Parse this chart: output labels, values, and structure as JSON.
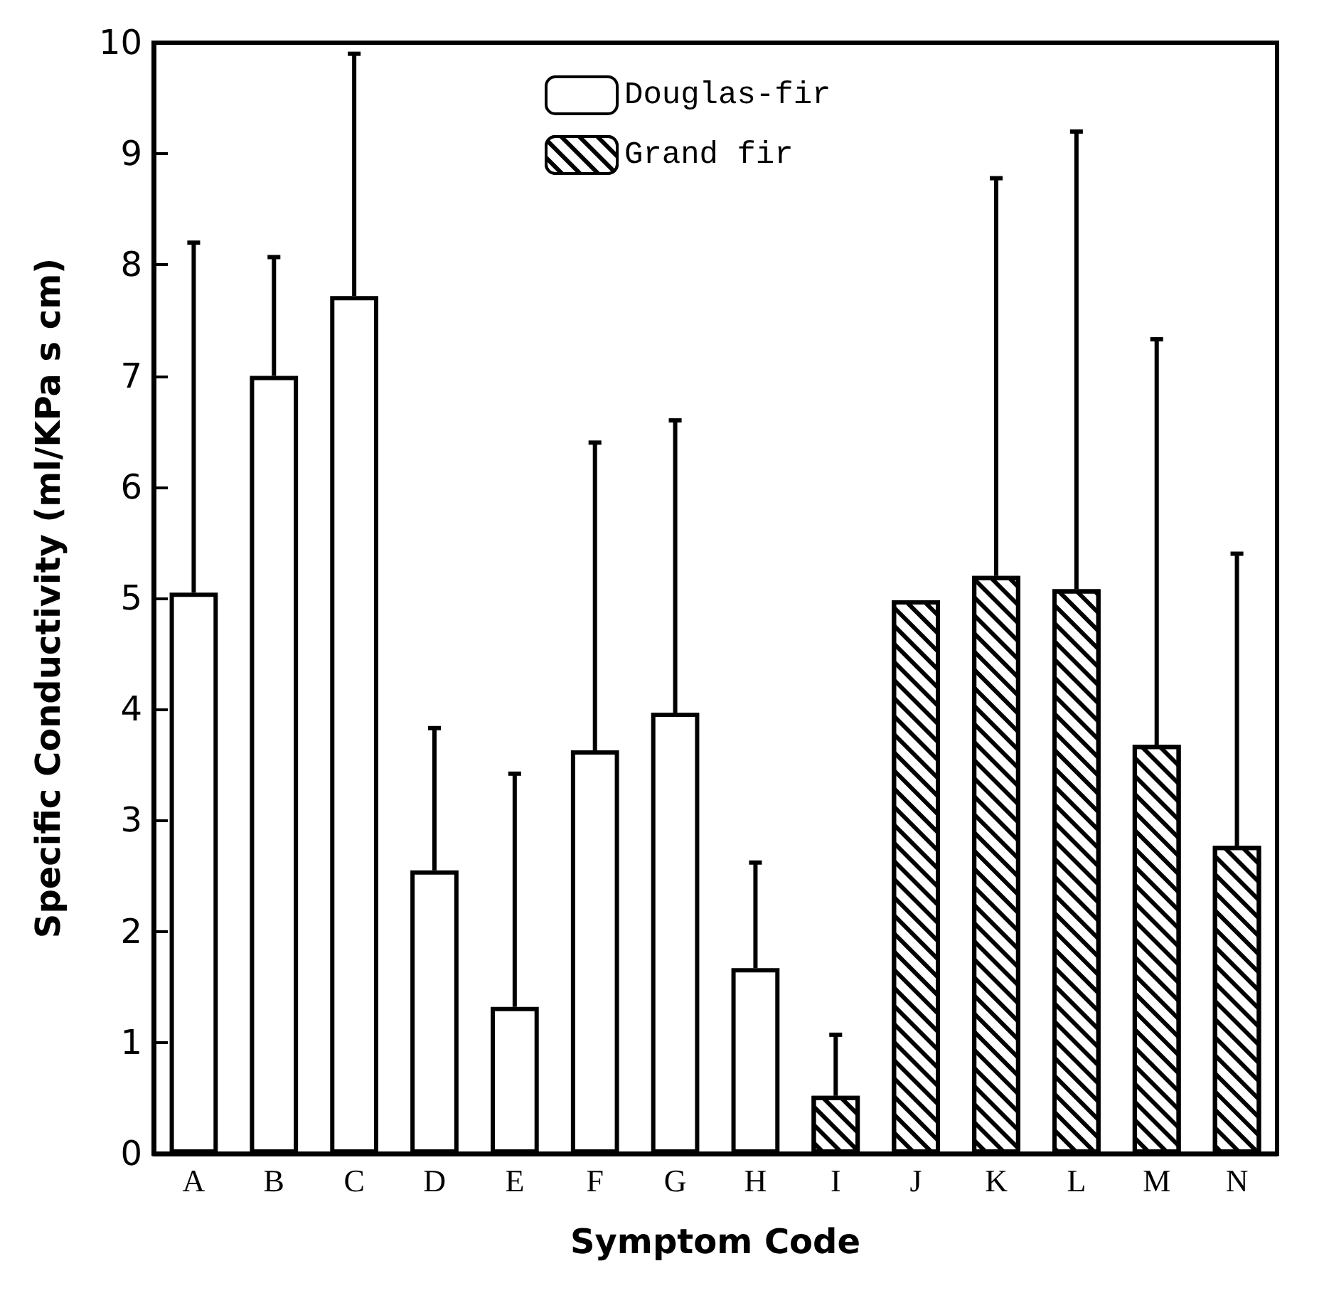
{
  "chart_data": {
    "type": "bar",
    "xlabel": "Symptom Code",
    "ylabel": "Specific Conductivity (ml/KPa s cm)",
    "categories": [
      "A",
      "B",
      "C",
      "D",
      "E",
      "F",
      "G",
      "H",
      "I",
      "J",
      "K",
      "L",
      "M",
      "N"
    ],
    "series": [
      {
        "name": "Douglas-fir",
        "color": "#ffffff",
        "values": [
          5.05,
          7.0,
          7.72,
          2.55,
          1.32,
          3.63,
          3.97,
          1.67,
          null,
          null,
          null,
          null,
          null,
          null
        ],
        "errors": [
          [
            5.05,
            8.2
          ],
          [
            7.0,
            8.07
          ],
          [
            7.72,
            9.9
          ],
          [
            2.55,
            3.83
          ],
          [
            1.32,
            3.42
          ],
          [
            3.63,
            6.4
          ],
          [
            3.97,
            6.6
          ],
          [
            1.67,
            2.62
          ],
          null,
          null,
          null,
          null,
          null,
          null
        ]
      },
      {
        "name": "Grand fir",
        "color": "#ffffff",
        "values": [
          null,
          null,
          null,
          null,
          null,
          null,
          null,
          null,
          0.52,
          4.98,
          5.2,
          5.08,
          3.68,
          2.77
        ],
        "errors": [
          null,
          null,
          null,
          null,
          null,
          null,
          null,
          null,
          [
            0.52,
            1.07
          ],
          null,
          [
            5.2,
            8.78
          ],
          [
            5.08,
            9.2
          ],
          [
            3.68,
            7.33
          ],
          [
            2.77,
            5.4
          ]
        ]
      }
    ],
    "ylim": [
      0,
      10
    ],
    "yticks": [
      0,
      1,
      2,
      3,
      4,
      5,
      6,
      7,
      8,
      9,
      10
    ],
    "grid": false,
    "legend": "top"
  }
}
